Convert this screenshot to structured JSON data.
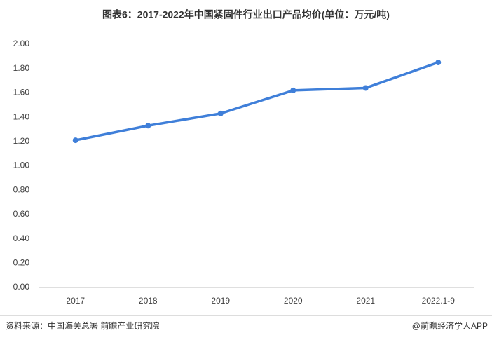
{
  "chart_data": {
    "type": "line",
    "title": "图表6：2017-2022年中国紧固件行业出口产品均价(单位：万元/吨)",
    "categories": [
      "2017",
      "2018",
      "2019",
      "2020",
      "2021",
      "2022.1-9"
    ],
    "values": [
      1.21,
      1.33,
      1.43,
      1.62,
      1.64,
      1.85
    ],
    "color": "#3f7fd9",
    "ylim": [
      0,
      2
    ],
    "yticks": [
      {
        "value": 0,
        "label": "0.00"
      },
      {
        "value": 0.2,
        "label": "0.20"
      },
      {
        "value": 0.4,
        "label": "0.40"
      },
      {
        "value": 0.6,
        "label": "0.60"
      },
      {
        "value": 0.8,
        "label": "0.80"
      },
      {
        "value": 1,
        "label": "1.00"
      },
      {
        "value": 1.2,
        "label": "1.20"
      },
      {
        "value": 1.4,
        "label": "1.40"
      },
      {
        "value": 1.6,
        "label": "1.60"
      },
      {
        "value": 1.8,
        "label": "1.80"
      },
      {
        "value": 2,
        "label": "2.00"
      }
    ],
    "grid": false,
    "source": "资料来源：中国海关总署 前瞻产业研究院",
    "credit": "@前瞻经济学人APP"
  }
}
